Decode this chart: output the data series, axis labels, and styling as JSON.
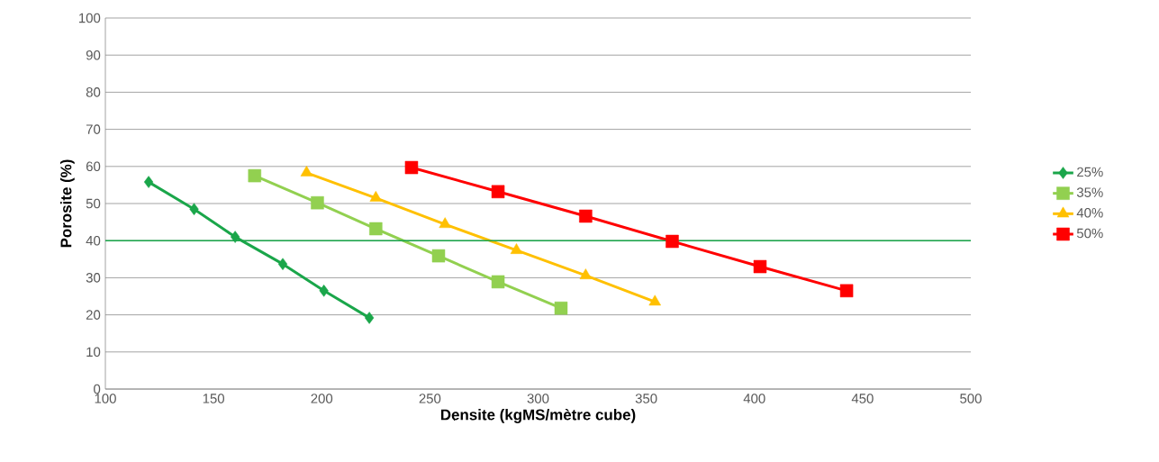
{
  "chart_data": {
    "type": "line",
    "xlabel": "Densite (kgMS/mètre cube)",
    "ylabel": "Porosite (%)",
    "xlim": [
      100,
      500
    ],
    "xticks": [
      100,
      150,
      200,
      250,
      300,
      350,
      400,
      450,
      500
    ],
    "ylim": [
      0,
      100
    ],
    "yticks": [
      0,
      10,
      20,
      30,
      40,
      50,
      60,
      70,
      80,
      90,
      100
    ],
    "grid": "y",
    "legend": "right",
    "line_style": "solid",
    "series": [
      {
        "name": "25%",
        "color": "#1aa64a",
        "marker": "diamond",
        "x": [
          120,
          141,
          160,
          182,
          201,
          222
        ],
        "values": [
          55.8,
          48.5,
          41,
          33.7,
          26.5,
          19.2
        ]
      },
      {
        "name": "35%",
        "color": "#92d050",
        "marker": "square",
        "x": [
          169,
          198,
          225,
          254,
          281.5,
          310.6
        ],
        "values": [
          57.5,
          50.2,
          43.2,
          35.9,
          28.9,
          21.8
        ]
      },
      {
        "name": "40%",
        "color": "#ffc000",
        "marker": "triangle",
        "x": [
          193,
          225,
          257,
          290,
          322,
          354
        ],
        "values": [
          58.3,
          51.5,
          44.4,
          37.4,
          30.6,
          23.5
        ]
      },
      {
        "name": "50%",
        "color": "#ff0000",
        "marker": "square",
        "x": [
          241.5,
          281.5,
          322,
          362,
          402.6,
          442.6
        ],
        "values": [
          59.7,
          53.2,
          46.6,
          39.8,
          33,
          26.5
        ]
      }
    ],
    "ref_lines": [
      {
        "axis": "y",
        "value": 40,
        "color": "#1aa64a"
      }
    ]
  }
}
